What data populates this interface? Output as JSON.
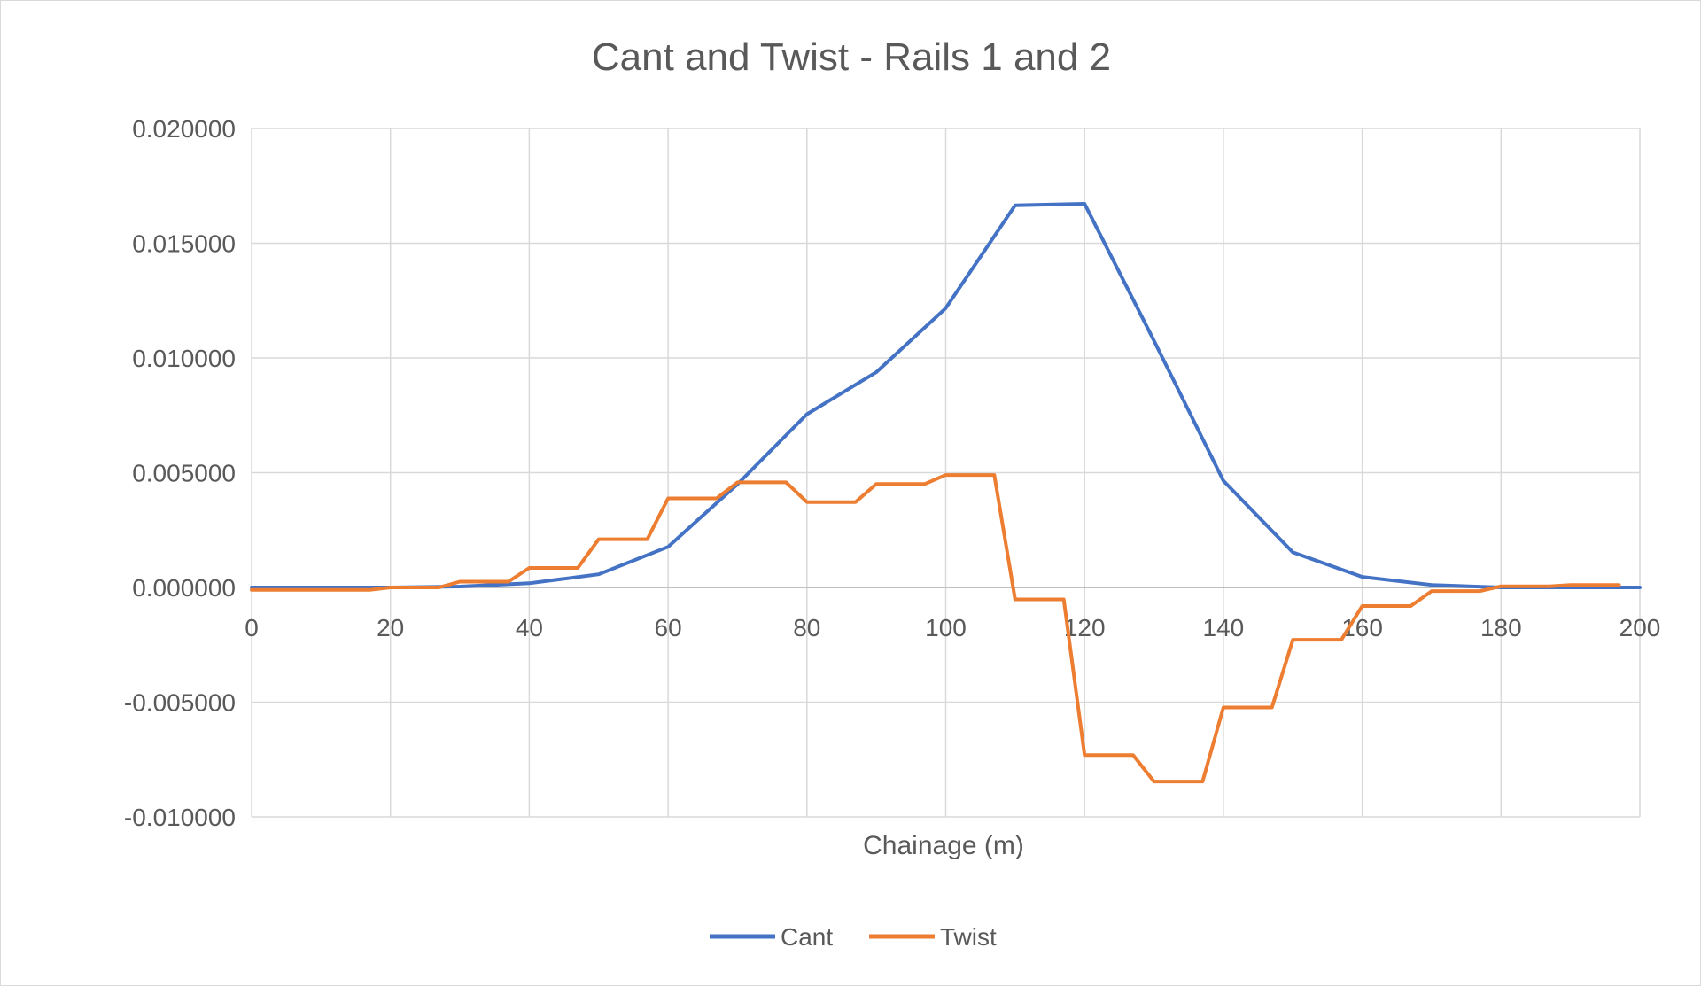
{
  "chart_data": {
    "type": "line",
    "title": "Cant and Twist - Rails 1 and 2",
    "xlabel": "Chainage (m)",
    "ylabel": "",
    "xlim": [
      0,
      200
    ],
    "ylim": [
      -0.01,
      0.02
    ],
    "x_ticks": [
      "0",
      "20",
      "40",
      "60",
      "80",
      "100",
      "120",
      "140",
      "160",
      "180",
      "200"
    ],
    "y_ticks": [
      "0.020000",
      "0.015000",
      "0.010000",
      "0.005000",
      "0.000000",
      "-0.005000",
      "-0.010000"
    ],
    "grid": true,
    "legend_position": "bottom",
    "series": [
      {
        "name": "Cant",
        "color": "#4472c4",
        "x": [
          0,
          10,
          20,
          30,
          40,
          50,
          60,
          70,
          80,
          90,
          100,
          110,
          120,
          130,
          140,
          150,
          160,
          170,
          180,
          190,
          200
        ],
        "y": [
          0.0,
          0.0,
          0.0,
          4e-05,
          0.00018,
          0.00057,
          0.00177,
          0.0045,
          0.00755,
          0.00938,
          0.01217,
          0.01665,
          0.01672,
          0.01075,
          0.00465,
          0.00153,
          0.00046,
          0.00011,
          0.0,
          0.0,
          0.0
        ]
      },
      {
        "name": "Twist",
        "color": "#ed7d31",
        "x": [
          0,
          17,
          20,
          27,
          30,
          37,
          40,
          47,
          50,
          57,
          60,
          67,
          70,
          77,
          80,
          87,
          90,
          97,
          100,
          107,
          110,
          117,
          120,
          127,
          130,
          137,
          140,
          147,
          150,
          157,
          160,
          167,
          170,
          177,
          180,
          187,
          190,
          197
        ],
        "y": [
          -0.00011,
          -0.00011,
          0.0,
          0.0,
          0.00025,
          0.00025,
          0.00085,
          0.00085,
          0.0021,
          0.0021,
          0.00388,
          0.00388,
          0.00458,
          0.00458,
          0.00372,
          0.00372,
          0.00451,
          0.00451,
          0.0049,
          0.0049,
          -0.00052,
          -0.00052,
          -0.00731,
          -0.00731,
          -0.00846,
          -0.00846,
          -0.00523,
          -0.00523,
          -0.00228,
          -0.00228,
          -0.00081,
          -0.00081,
          -0.00016,
          -0.00016,
          5e-05,
          5e-05,
          0.00011,
          0.00011
        ]
      }
    ]
  }
}
